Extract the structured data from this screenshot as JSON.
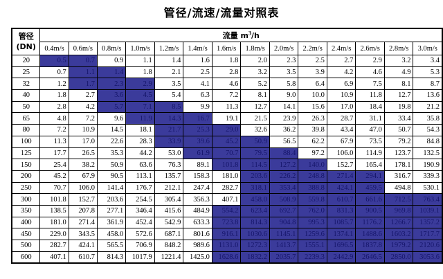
{
  "title": "管径/流速/流量对照表",
  "colors": {
    "background": "#FFFFFF",
    "border": "#000000",
    "text": "#000000",
    "highlight_bg": "#3B3B9B",
    "highlight_text": "#15156A"
  },
  "table": {
    "corner": {
      "line1": "管径",
      "line2": "(DN)"
    },
    "flow_header": {
      "text": "流量 m",
      "sup": "3",
      "suffix": "/h"
    },
    "velocity_headers": [
      "0.4m/s",
      "0.6m/s",
      "0.8m/s",
      "1.0m/s",
      "1.2m/s",
      "1.4m/s",
      "1.6m/s",
      "1.8m/s",
      "2.0m/s",
      "2.2m/s",
      "2.4m/s",
      "2.6m/s",
      "2.8m/s",
      "3.0m/s"
    ],
    "rows": [
      {
        "dn": "20",
        "values": [
          "0.5",
          "0.7",
          "0.9",
          "1.1",
          "1.4",
          "1.6",
          "1.8",
          "2.0",
          "2.3",
          "2.5",
          "2.7",
          "2.9",
          "3.2",
          "3.4"
        ],
        "highlight": [
          0,
          1
        ]
      },
      {
        "dn": "25",
        "values": [
          "0.7",
          "1.1",
          "1.4",
          "1.8",
          "2.1",
          "2.5",
          "2.8",
          "3.2",
          "3.5",
          "3.9",
          "4.2",
          "4.6",
          "4.9",
          "5.3"
        ],
        "highlight": [
          1,
          2
        ]
      },
      {
        "dn": "32",
        "values": [
          "1.2",
          "1.7",
          "2.3",
          "2.9",
          "3.5",
          "4.1",
          "4.6",
          "5.2",
          "5.8",
          "6.4",
          "6.9",
          "7.5",
          "8.1",
          "8.7"
        ],
        "highlight": [
          1,
          3
        ]
      },
      {
        "dn": "40",
        "values": [
          "1.8",
          "2.7",
          "3.6",
          "4.5",
          "5.4",
          "6.3",
          "7.2",
          "8.1",
          "9.0",
          "10.0",
          "10.9",
          "11.8",
          "12.7",
          "13.6"
        ],
        "highlight": [
          2,
          3
        ]
      },
      {
        "dn": "50",
        "values": [
          "2.8",
          "4.2",
          "5.7",
          "7.1",
          "8.5",
          "9.9",
          "11.3",
          "12.7",
          "14.1",
          "15.6",
          "17.0",
          "18.4",
          "19.8",
          "21.2"
        ],
        "highlight": [
          2,
          4
        ]
      },
      {
        "dn": "65",
        "values": [
          "4.8",
          "7.2",
          "9.6",
          "11.9",
          "14.3",
          "16.7",
          "19.1",
          "21.5",
          "23.9",
          "26.3",
          "28.7",
          "31.1",
          "33.4",
          "35.8"
        ],
        "highlight": [
          3,
          5
        ]
      },
      {
        "dn": "80",
        "values": [
          "7.2",
          "10.9",
          "14.5",
          "18.1",
          "21.7",
          "25.3",
          "29.0",
          "32.6",
          "36.2",
          "39.8",
          "43.4",
          "47.0",
          "50.7",
          "54.3"
        ],
        "highlight": [
          4,
          6
        ]
      },
      {
        "dn": "100",
        "values": [
          "11.3",
          "17.0",
          "22.6",
          "28.3",
          "33.9",
          "39.6",
          "45.2",
          "50.9",
          "56.5",
          "62.2",
          "67.9",
          "73.5",
          "79.2",
          "84.8"
        ],
        "highlight": [
          4,
          7
        ]
      },
      {
        "dn": "125",
        "values": [
          "17.7",
          "26.5",
          "35.3",
          "44.2",
          "53.0",
          "61.9",
          "70.7",
          "79.5",
          "88.4",
          "97.2",
          "106.0",
          "114.9",
          "123.7",
          "132.5"
        ],
        "highlight": [
          5,
          8
        ]
      },
      {
        "dn": "150",
        "values": [
          "25.4",
          "38.2",
          "50.9",
          "63.6",
          "76.3",
          "89.1",
          "101.8",
          "114.5",
          "127.2",
          "140.0",
          "152.7",
          "165.4",
          "178.1",
          "190.9"
        ],
        "highlight": [
          6,
          9
        ]
      },
      {
        "dn": "200",
        "values": [
          "45.2",
          "67.9",
          "90.5",
          "113.1",
          "135.7",
          "158.3",
          "181.0",
          "203.6",
          "226.2",
          "248.8",
          "271.4",
          "294.1",
          "316.7",
          "339.3"
        ],
        "highlight": [
          7,
          11
        ]
      },
      {
        "dn": "250",
        "values": [
          "70.7",
          "106.0",
          "141.4",
          "176.7",
          "212.1",
          "247.4",
          "282.7",
          "318.1",
          "353.4",
          "388.8",
          "424.1",
          "459.5",
          "494.8",
          "530.1"
        ],
        "highlight": [
          7,
          11
        ]
      },
      {
        "dn": "300",
        "values": [
          "101.8",
          "152.7",
          "203.6",
          "254.5",
          "305.4",
          "356.3",
          "407.1",
          "458.0",
          "508.9",
          "559.8",
          "610.7",
          "661.6",
          "712.5",
          "763.4"
        ],
        "highlight": [
          7,
          13
        ]
      },
      {
        "dn": "350",
        "values": [
          "138.5",
          "207.8",
          "277.1",
          "346.4",
          "415.6",
          "484.9",
          "554.2",
          "623.4",
          "692.7",
          "762.0",
          "831.3",
          "900.5",
          "969.8",
          "1039.1"
        ],
        "highlight": [
          6,
          13
        ]
      },
      {
        "dn": "400",
        "values": [
          "181.0",
          "271.4",
          "361.9",
          "452.4",
          "542.9",
          "633.3",
          "723.8",
          "814.3",
          "904.8",
          "995.3",
          "1085.7",
          "1176.2",
          "1266.7",
          "1357.2"
        ],
        "highlight": [
          6,
          13
        ]
      },
      {
        "dn": "450",
        "values": [
          "229.0",
          "343.5",
          "458.0",
          "572.6",
          "687.1",
          "801.6",
          "916.1",
          "1030.6",
          "1145.1",
          "1259.6",
          "1374.1",
          "1488.6",
          "1603.2",
          "1717.7"
        ],
        "highlight": [
          6,
          13
        ]
      },
      {
        "dn": "500",
        "values": [
          "282.7",
          "424.1",
          "565.5",
          "706.9",
          "848.2",
          "989.6",
          "1131.0",
          "1272.3",
          "1413.7",
          "1555.1",
          "1696.5",
          "1837.8",
          "1979.2",
          "2120.6"
        ],
        "highlight": [
          6,
          13
        ]
      },
      {
        "dn": "600",
        "values": [
          "407.1",
          "610.7",
          "814.3",
          "1017.9",
          "1221.4",
          "1425.0",
          "1628.6",
          "1832.2",
          "2035.7",
          "2239.3",
          "2442.9",
          "2646.5",
          "2850.0",
          "3053.6"
        ],
        "highlight": [
          6,
          13
        ]
      }
    ]
  }
}
